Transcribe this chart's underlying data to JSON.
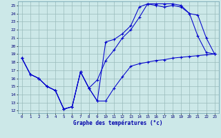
{
  "xlabel": "Graphe des températures (°c)",
  "xlim_min": -0.5,
  "xlim_max": 23.5,
  "ylim_min": 11.7,
  "ylim_max": 25.5,
  "xticks": [
    0,
    1,
    2,
    3,
    4,
    5,
    6,
    7,
    8,
    9,
    10,
    11,
    12,
    13,
    14,
    15,
    16,
    17,
    18,
    19,
    20,
    21,
    22,
    23
  ],
  "yticks": [
    12,
    13,
    14,
    15,
    16,
    17,
    18,
    19,
    20,
    21,
    22,
    23,
    24,
    25
  ],
  "bg_color": "#cce8e8",
  "line_color": "#0000cc",
  "grid_color": "#99bbbb",
  "line1_x": [
    0,
    1,
    2,
    3,
    4,
    5,
    6,
    7,
    8,
    9,
    10,
    11,
    12,
    13,
    14,
    15,
    16,
    17,
    18,
    19,
    20,
    21,
    22,
    23
  ],
  "line1_y": [
    18.5,
    16.5,
    16.0,
    15.0,
    14.5,
    12.2,
    12.5,
    16.8,
    14.8,
    13.2,
    13.2,
    14.8,
    16.2,
    17.5,
    17.8,
    18.0,
    18.2,
    18.3,
    18.5,
    18.6,
    18.7,
    18.8,
    18.9,
    19.0
  ],
  "line2_x": [
    0,
    1,
    2,
    3,
    4,
    5,
    6,
    7,
    8,
    9,
    10,
    11,
    12,
    13,
    14,
    15,
    16,
    17,
    18,
    19,
    20,
    21,
    22,
    23
  ],
  "line2_y": [
    18.5,
    16.5,
    16.0,
    15.0,
    14.5,
    12.2,
    12.5,
    16.8,
    14.8,
    15.8,
    18.2,
    19.5,
    21.0,
    22.0,
    23.5,
    25.2,
    25.0,
    24.8,
    25.0,
    24.8,
    24.0,
    21.2,
    19.2,
    19.0
  ],
  "line3_x": [
    0,
    1,
    2,
    3,
    4,
    5,
    6,
    7,
    8,
    9,
    10,
    11,
    12,
    13,
    14,
    15,
    16,
    17,
    18,
    19,
    20,
    21,
    22,
    23
  ],
  "line3_y": [
    18.5,
    16.5,
    16.0,
    15.0,
    14.5,
    12.2,
    12.5,
    16.8,
    14.8,
    13.2,
    20.5,
    20.8,
    21.5,
    22.5,
    24.8,
    25.2,
    25.2,
    25.2,
    25.2,
    25.0,
    24.0,
    23.8,
    21.0,
    19.0
  ]
}
